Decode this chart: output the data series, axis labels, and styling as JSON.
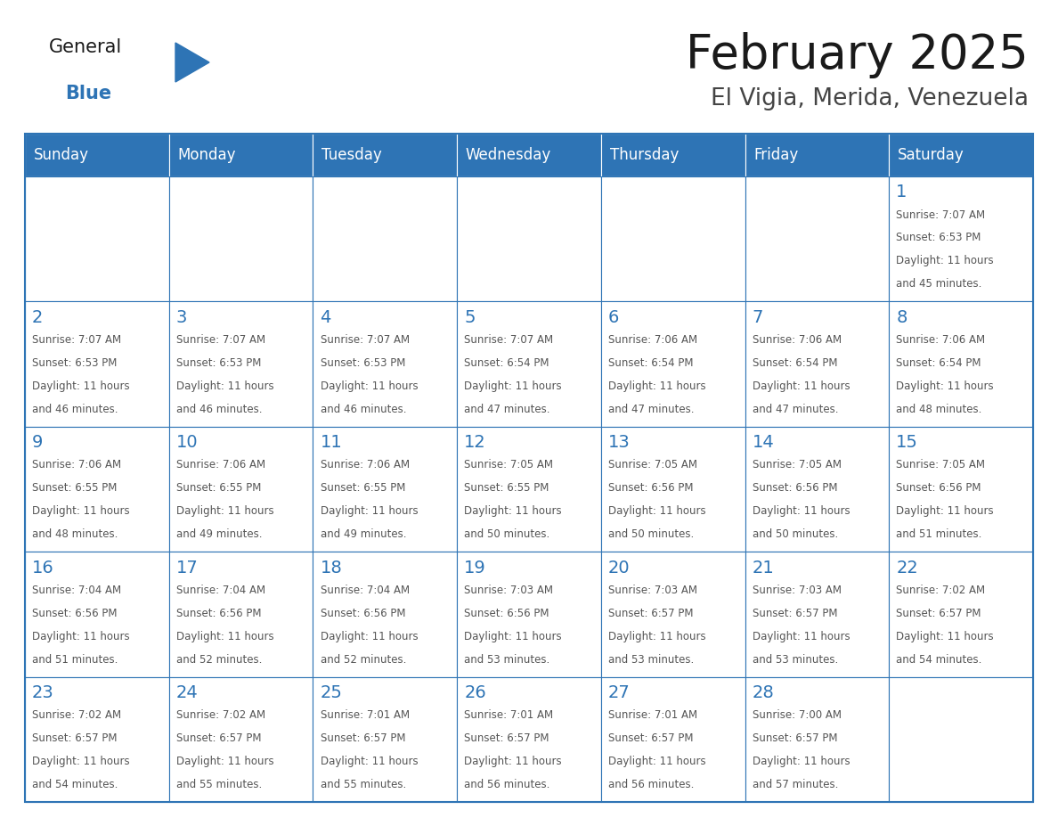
{
  "title": "February 2025",
  "subtitle": "El Vigia, Merida, Venezuela",
  "header_bg_color": "#2E74B5",
  "header_text_color": "#FFFFFF",
  "cell_bg_color": "#FFFFFF",
  "border_color": "#2E74B5",
  "text_color": "#555555",
  "day_number_color": "#2E74B5",
  "days_of_week": [
    "Sunday",
    "Monday",
    "Tuesday",
    "Wednesday",
    "Thursday",
    "Friday",
    "Saturday"
  ],
  "calendar_data": [
    [
      null,
      null,
      null,
      null,
      null,
      null,
      {
        "day": 1,
        "sunrise": "7:07 AM",
        "sunset": "6:53 PM",
        "daylight": "11 hours and 45 minutes."
      }
    ],
    [
      {
        "day": 2,
        "sunrise": "7:07 AM",
        "sunset": "6:53 PM",
        "daylight": "11 hours and 46 minutes."
      },
      {
        "day": 3,
        "sunrise": "7:07 AM",
        "sunset": "6:53 PM",
        "daylight": "11 hours and 46 minutes."
      },
      {
        "day": 4,
        "sunrise": "7:07 AM",
        "sunset": "6:53 PM",
        "daylight": "11 hours and 46 minutes."
      },
      {
        "day": 5,
        "sunrise": "7:07 AM",
        "sunset": "6:54 PM",
        "daylight": "11 hours and 47 minutes."
      },
      {
        "day": 6,
        "sunrise": "7:06 AM",
        "sunset": "6:54 PM",
        "daylight": "11 hours and 47 minutes."
      },
      {
        "day": 7,
        "sunrise": "7:06 AM",
        "sunset": "6:54 PM",
        "daylight": "11 hours and 47 minutes."
      },
      {
        "day": 8,
        "sunrise": "7:06 AM",
        "sunset": "6:54 PM",
        "daylight": "11 hours and 48 minutes."
      }
    ],
    [
      {
        "day": 9,
        "sunrise": "7:06 AM",
        "sunset": "6:55 PM",
        "daylight": "11 hours and 48 minutes."
      },
      {
        "day": 10,
        "sunrise": "7:06 AM",
        "sunset": "6:55 PM",
        "daylight": "11 hours and 49 minutes."
      },
      {
        "day": 11,
        "sunrise": "7:06 AM",
        "sunset": "6:55 PM",
        "daylight": "11 hours and 49 minutes."
      },
      {
        "day": 12,
        "sunrise": "7:05 AM",
        "sunset": "6:55 PM",
        "daylight": "11 hours and 50 minutes."
      },
      {
        "day": 13,
        "sunrise": "7:05 AM",
        "sunset": "6:56 PM",
        "daylight": "11 hours and 50 minutes."
      },
      {
        "day": 14,
        "sunrise": "7:05 AM",
        "sunset": "6:56 PM",
        "daylight": "11 hours and 50 minutes."
      },
      {
        "day": 15,
        "sunrise": "7:05 AM",
        "sunset": "6:56 PM",
        "daylight": "11 hours and 51 minutes."
      }
    ],
    [
      {
        "day": 16,
        "sunrise": "7:04 AM",
        "sunset": "6:56 PM",
        "daylight": "11 hours and 51 minutes."
      },
      {
        "day": 17,
        "sunrise": "7:04 AM",
        "sunset": "6:56 PM",
        "daylight": "11 hours and 52 minutes."
      },
      {
        "day": 18,
        "sunrise": "7:04 AM",
        "sunset": "6:56 PM",
        "daylight": "11 hours and 52 minutes."
      },
      {
        "day": 19,
        "sunrise": "7:03 AM",
        "sunset": "6:56 PM",
        "daylight": "11 hours and 53 minutes."
      },
      {
        "day": 20,
        "sunrise": "7:03 AM",
        "sunset": "6:57 PM",
        "daylight": "11 hours and 53 minutes."
      },
      {
        "day": 21,
        "sunrise": "7:03 AM",
        "sunset": "6:57 PM",
        "daylight": "11 hours and 53 minutes."
      },
      {
        "day": 22,
        "sunrise": "7:02 AM",
        "sunset": "6:57 PM",
        "daylight": "11 hours and 54 minutes."
      }
    ],
    [
      {
        "day": 23,
        "sunrise": "7:02 AM",
        "sunset": "6:57 PM",
        "daylight": "11 hours and 54 minutes."
      },
      {
        "day": 24,
        "sunrise": "7:02 AM",
        "sunset": "6:57 PM",
        "daylight": "11 hours and 55 minutes."
      },
      {
        "day": 25,
        "sunrise": "7:01 AM",
        "sunset": "6:57 PM",
        "daylight": "11 hours and 55 minutes."
      },
      {
        "day": 26,
        "sunrise": "7:01 AM",
        "sunset": "6:57 PM",
        "daylight": "11 hours and 56 minutes."
      },
      {
        "day": 27,
        "sunrise": "7:01 AM",
        "sunset": "6:57 PM",
        "daylight": "11 hours and 56 minutes."
      },
      {
        "day": 28,
        "sunrise": "7:00 AM",
        "sunset": "6:57 PM",
        "daylight": "11 hours and 57 minutes."
      },
      null
    ]
  ],
  "logo_general_color": "#1a1a1a",
  "logo_blue_color": "#2E74B5",
  "logo_triangle_color": "#2E74B5",
  "title_color": "#1a1a1a",
  "subtitle_color": "#444444",
  "title_fontsize": 38,
  "subtitle_fontsize": 19,
  "header_fontsize": 12,
  "day_num_fontsize": 14,
  "cell_text_fontsize": 8.5
}
